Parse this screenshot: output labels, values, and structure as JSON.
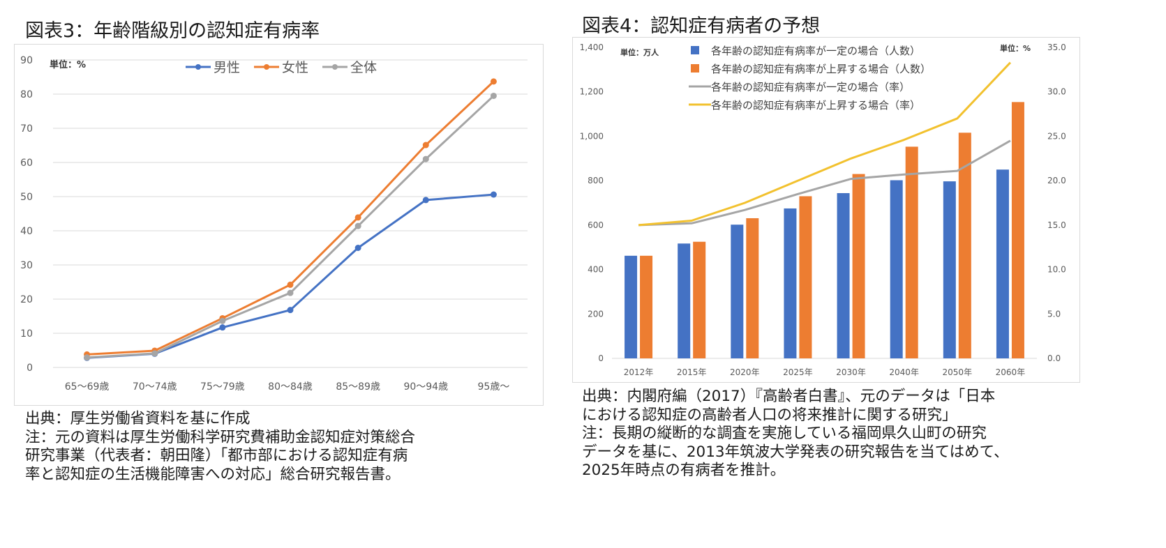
{
  "left": {
    "title": "図表3：年齢階級別の認知症有病率",
    "notes": [
      "出典：厚生労働省資料を基に作成",
      "注：元の資料は厚生労働科学研究費補助金認知症対策総合",
      "研究事業（代表者：朝田隆）「都市部における認知症有病",
      "率と認知症の生活機能障害への対応」総合研究報告書。"
    ]
  },
  "right": {
    "title": "図表4：認知症有病者の予想",
    "notes": [
      "出典：内閣府編（2017）『高齢者白書』、元のデータは「日本",
      "における認知症の高齢者人口の将来推計に関する研究」",
      "注：長期の縦断的な調査を実施している福岡県久山町の研究",
      "データを基に、2013年筑波大学発表の研究報告を当てはめて、",
      "2025年時点の有病者を推計。"
    ]
  },
  "chart_data": [
    {
      "type": "line",
      "unit_label": "単位：%",
      "categories": [
        "65～69歳",
        "70～74歳",
        "75～79歳",
        "80～84歳",
        "85～89歳",
        "90～94歳",
        "95歳～"
      ],
      "ylim": [
        0,
        90
      ],
      "yticks": [
        0,
        10,
        20,
        30,
        40,
        50,
        60,
        70,
        80,
        90
      ],
      "grid": true,
      "legend_position": "top",
      "series": [
        {
          "name": "男性",
          "color": "#4472C4",
          "values": [
            2.8,
            4.0,
            11.7,
            16.8,
            35.0,
            49.0,
            50.6
          ]
        },
        {
          "name": "女性",
          "color": "#ED7D31",
          "values": [
            3.8,
            4.9,
            14.4,
            24.2,
            43.9,
            65.1,
            83.7
          ]
        },
        {
          "name": "全体",
          "color": "#A5A5A5",
          "values": [
            2.9,
            4.1,
            13.6,
            21.8,
            41.4,
            61.0,
            79.5
          ]
        }
      ]
    },
    {
      "type": "bar",
      "unit_label_left": "単位：万人",
      "unit_label_right": "単位：%",
      "categories": [
        "2012年",
        "2015年",
        "2020年",
        "2025年",
        "2030年",
        "2040年",
        "2050年",
        "2060年"
      ],
      "ylim": [
        0,
        1400
      ],
      "yticks": [
        0,
        200,
        400,
        600,
        800,
        1000,
        1200,
        1400
      ],
      "ytick_labels": [
        "0",
        "200",
        "400",
        "600",
        "800",
        "1,000",
        "1,200",
        "1,400"
      ],
      "y2lim": [
        0,
        35
      ],
      "y2ticks": [
        0,
        5,
        10,
        15,
        20,
        25,
        30,
        35
      ],
      "y2tick_labels": [
        "0.0",
        "5.0",
        "10.0",
        "15.0",
        "20.0",
        "25.0",
        "30.0",
        "35.0"
      ],
      "legend_position": "top",
      "series": [
        {
          "name": "各年齢の認知症有病率が一定の場合（人数）",
          "kind": "bar",
          "axis": "left",
          "color": "#4472C4",
          "values": [
            462,
            517,
            602,
            675,
            744,
            802,
            797,
            850
          ]
        },
        {
          "name": "各年齢の認知症有病率が上昇する場合（人数）",
          "kind": "bar",
          "axis": "left",
          "color": "#ED7D31",
          "values": [
            462,
            525,
            631,
            730,
            830,
            953,
            1016,
            1154
          ]
        },
        {
          "name": "各年齢の認知症有病率が一定の場合（率）",
          "kind": "line",
          "axis": "right",
          "color": "#A5A5A5",
          "values": [
            15.0,
            15.2,
            16.7,
            18.5,
            20.2,
            20.7,
            21.1,
            24.5
          ]
        },
        {
          "name": "各年齢の認知症有病率が上昇する場合（率）",
          "kind": "line",
          "axis": "right",
          "color": "#F2C12E",
          "values": [
            15.0,
            15.5,
            17.5,
            20.0,
            22.5,
            24.6,
            27.0,
            33.3
          ]
        }
      ]
    }
  ]
}
